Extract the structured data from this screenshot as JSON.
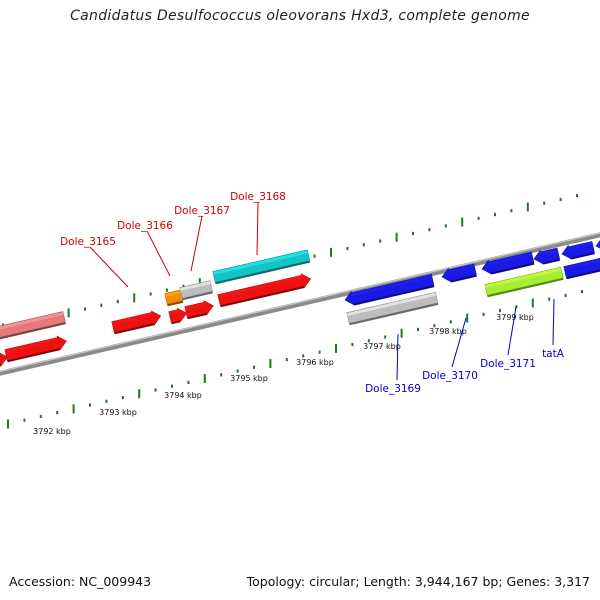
{
  "title": "Candidatus Desulfococcus oleovorans Hxd3, complete genome",
  "footer": {
    "accession": "Accession: NC_009943",
    "summary": "Topology: circular; Length: 3,944,167 bp; Genes: 3,317"
  },
  "colors": {
    "backbone": "#808080",
    "ticks": "#1f7a1f",
    "label_forward": "#cc0000",
    "label_reverse": "#0000cc",
    "tick_label": "#111111"
  },
  "scale": {
    "unit": "kbp",
    "labels": [
      "3792 kbp",
      "3793 kbp",
      "3794 kbp",
      "3795 kbp",
      "3796 kbp",
      "3797 kbp",
      "3798 kbp",
      "3799 kbp"
    ]
  },
  "gene_labels": {
    "forward": [
      "Dole_3165",
      "Dole_3166",
      "Dole_3167",
      "Dole_3168"
    ],
    "reverse": [
      "Dole_3169",
      "Dole_3170",
      "Dole_3171",
      "tatA"
    ]
  },
  "features": [
    {
      "color": "#e47a7a",
      "strand": "forward"
    },
    {
      "color": "#ee1111",
      "strand": "forward"
    },
    {
      "color": "#ee1111",
      "strand": "forward"
    },
    {
      "color": "#ee1111",
      "strand": "forward"
    },
    {
      "color": "#ee1111",
      "strand": "forward"
    },
    {
      "color": "#ee1111",
      "strand": "forward"
    },
    {
      "color": "#f08c00",
      "strand": "forward"
    },
    {
      "color": "#bdbdbd",
      "strand": "forward"
    },
    {
      "color": "#17c4c4",
      "strand": "forward"
    },
    {
      "color": "#ee1111",
      "strand": "forward"
    },
    {
      "color": "#1a1ae6",
      "strand": "reverse"
    },
    {
      "color": "#bdbdbd",
      "strand": "reverse"
    },
    {
      "color": "#1a1ae6",
      "strand": "reverse"
    },
    {
      "color": "#1a1ae6",
      "strand": "reverse"
    },
    {
      "color": "#1a1ae6",
      "strand": "reverse"
    },
    {
      "color": "#1a1ae6",
      "strand": "reverse"
    },
    {
      "color": "#a6ee33",
      "strand": "reverse"
    },
    {
      "color": "#1a1ae6",
      "strand": "reverse"
    },
    {
      "color": "#1a1ae6",
      "strand": "reverse"
    }
  ]
}
